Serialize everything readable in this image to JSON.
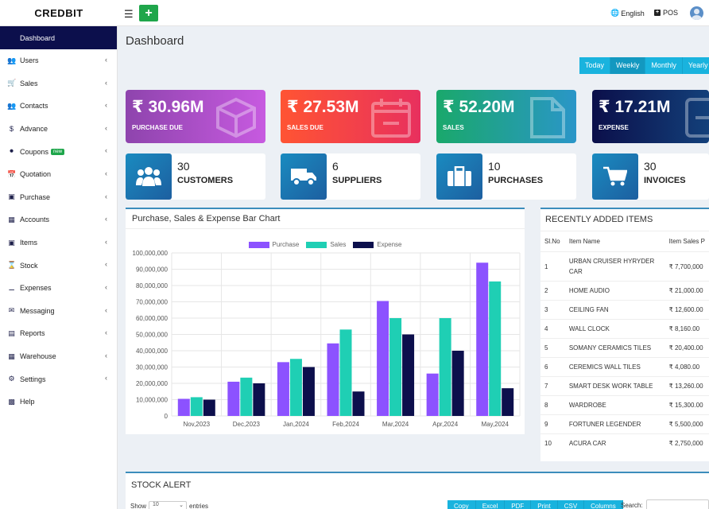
{
  "header": {
    "logo": "CREDBIT",
    "language": "English",
    "pos": "POS"
  },
  "sidebar": {
    "active": "Dashboard",
    "items": [
      {
        "label": "Users",
        "icon": "user-plus-icon"
      },
      {
        "label": "Sales",
        "icon": "cart-icon"
      },
      {
        "label": "Contacts",
        "icon": "users-icon"
      },
      {
        "label": "Advance",
        "icon": "dollar-icon"
      },
      {
        "label": "Coupons",
        "icon": "tags-icon",
        "badge": "new"
      },
      {
        "label": "Quotation",
        "icon": "calendar-icon"
      },
      {
        "label": "Purchase",
        "icon": "cube-icon"
      },
      {
        "label": "Accounts",
        "icon": "grid-icon"
      },
      {
        "label": "Items",
        "icon": "cubes-icon"
      },
      {
        "label": "Stock",
        "icon": "hourglass-icon"
      },
      {
        "label": "Expenses",
        "icon": "minus-circle-icon"
      },
      {
        "label": "Messaging",
        "icon": "envelope-icon"
      },
      {
        "label": "Reports",
        "icon": "bar-chart-icon"
      },
      {
        "label": "Warehouse",
        "icon": "building-icon"
      },
      {
        "label": "Settings",
        "icon": "cogs-icon"
      },
      {
        "label": "Help",
        "icon": "book-icon",
        "no_chevron": true
      }
    ]
  },
  "page_title": "Dashboard",
  "range_buttons": [
    "Today",
    "Weekly",
    "Monthly",
    "Yearly"
  ],
  "summary_cards": [
    {
      "amount": "₹ 30.96M",
      "label": "PURCHASE DUE",
      "icon": "cube-icon"
    },
    {
      "amount": "₹ 27.53M",
      "label": "SALES DUE",
      "icon": "calendar-minus-icon"
    },
    {
      "amount": "₹ 52.20M",
      "label": "SALES",
      "icon": "file-icon"
    },
    {
      "amount": "₹ 17.21M",
      "label": "EXPENSE",
      "icon": "minus-square-icon"
    }
  ],
  "count_cards": [
    {
      "number": "30",
      "label": "CUSTOMERS",
      "icon": "users-icon"
    },
    {
      "number": "6",
      "label": "SUPPLIERS",
      "icon": "truck-icon"
    },
    {
      "number": "10",
      "label": "PURCHASES",
      "icon": "briefcase-icon"
    },
    {
      "number": "30",
      "label": "INVOICES",
      "icon": "cart-icon"
    }
  ],
  "chart_panel_title": "Purchase, Sales & Expense Bar Chart",
  "chart_data": {
    "type": "bar",
    "categories": [
      "Nov,2023",
      "Dec,2023",
      "Jan,2024",
      "Feb,2024",
      "Mar,2024",
      "Apr,2024",
      "May,2024"
    ],
    "series": [
      {
        "name": "Purchase",
        "color": "#8c52ff",
        "values": [
          10500000,
          21000000,
          33000000,
          44500000,
          70500000,
          26000000,
          94000000
        ]
      },
      {
        "name": "Sales",
        "color": "#1fcfb4",
        "values": [
          11500000,
          23500000,
          35000000,
          53000000,
          60000000,
          60000000,
          82500000
        ]
      },
      {
        "name": "Expense",
        "color": "#0c0f4c",
        "values": [
          10000000,
          20000000,
          30000000,
          15000000,
          50000000,
          40000000,
          17000000
        ]
      }
    ],
    "ylim": [
      0,
      100000000
    ],
    "yticks": [
      "100,000,000",
      "90,000,000",
      "80,000,000",
      "70,000,000",
      "60,000,000",
      "50,000,000",
      "40,000,000",
      "30,000,000",
      "20,000,000",
      "10,000,000",
      "0"
    ],
    "legend_position": "top-center",
    "grid": true
  },
  "recent_items": {
    "title": "RECENTLY ADDED ITEMS",
    "columns": [
      "Sl.No",
      "Item Name",
      "Item Sales P"
    ],
    "rows": [
      [
        "1",
        "URBAN CRUISER HYRYDER CAR",
        "₹ 7,700,000"
      ],
      [
        "2",
        "HOME AUDIO",
        "₹ 21,000.00"
      ],
      [
        "3",
        "CEILING FAN",
        "₹ 12,600.00"
      ],
      [
        "4",
        "WALL CLOCK",
        "₹ 8,160.00"
      ],
      [
        "5",
        "SOMANY CERAMICS TILES",
        "₹ 20,400.00"
      ],
      [
        "6",
        "CEREMICS WALL TILES",
        "₹ 4,080.00"
      ],
      [
        "7",
        "SMART DESK WORK TABLE",
        "₹ 13,260.00"
      ],
      [
        "8",
        "WARDROBE",
        "₹ 15,300.00"
      ],
      [
        "9",
        "FORTUNER LEGENDER",
        "₹ 5,500,000"
      ],
      [
        "10",
        "ACURA CAR",
        "₹ 2,750,000"
      ]
    ]
  },
  "stock_alert": {
    "title": "STOCK ALERT",
    "show_label": "Show",
    "show_value": "10",
    "entries_label": "entries",
    "buttons": [
      "Copy",
      "Excel",
      "PDF",
      "Print",
      "CSV",
      "Columns"
    ],
    "search_label": "Search:"
  },
  "colors": {
    "sidebar_active": "#0c0f4c",
    "accent": "#19b3de",
    "add_button": "#1fa64b"
  }
}
